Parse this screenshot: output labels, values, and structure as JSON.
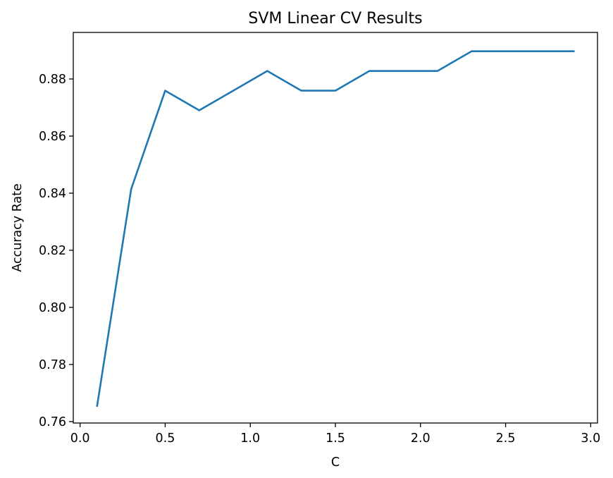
{
  "chart_data": {
    "type": "line",
    "title": "SVM Linear CV Results",
    "xlabel": "C",
    "ylabel": "Accuracy Rate",
    "xlim": [
      -0.04,
      3.04
    ],
    "ylim": [
      0.7595,
      0.8963
    ],
    "xticks": [
      0.0,
      0.5,
      1.0,
      1.5,
      2.0,
      2.5,
      3.0
    ],
    "xtick_labels": [
      "0.0",
      "0.5",
      "1.0",
      "1.5",
      "2.0",
      "2.5",
      "3.0"
    ],
    "yticks": [
      0.76,
      0.78,
      0.8,
      0.82,
      0.84,
      0.86,
      0.88
    ],
    "ytick_labels": [
      "0.76",
      "0.78",
      "0.80",
      "0.82",
      "0.84",
      "0.86",
      "0.88"
    ],
    "grid": false,
    "series": [
      {
        "color": "#1f77b4",
        "x": [
          0.1,
          0.3,
          0.5,
          0.7,
          0.9,
          1.1,
          1.3,
          1.5,
          1.7,
          1.9,
          2.1,
          2.3,
          2.5,
          2.7,
          2.9
        ],
        "y": [
          0.7655,
          0.8414,
          0.8759,
          0.869,
          0.8759,
          0.8828,
          0.8759,
          0.8759,
          0.8828,
          0.8828,
          0.8828,
          0.8897,
          0.8897,
          0.8897,
          0.8897
        ]
      }
    ]
  }
}
